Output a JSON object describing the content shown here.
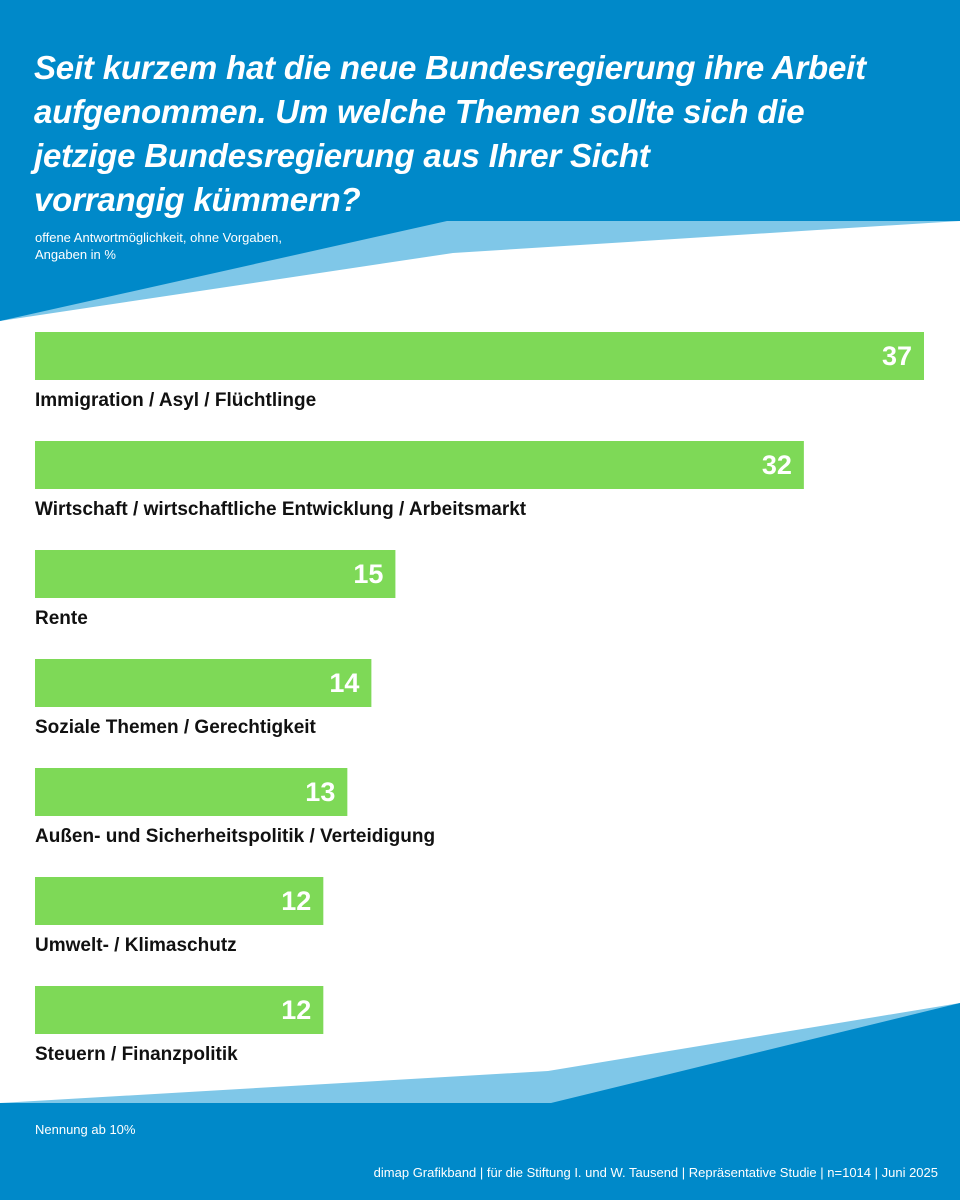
{
  "header": {
    "title_lines": [
      "Seit kurzem hat die neue Bundesregierung ihre Arbeit",
      "aufgenommen. Um welche Themen sollte sich die",
      "jetzige Bundesregierung aus Ihrer Sicht",
      "vorrangig kümmern?"
    ],
    "subtitle_lines": [
      "offene Antwortmöglichkeit, ohne Vorgaben,",
      "Angaben in %"
    ]
  },
  "footer": {
    "note": "Nennung ab 10%",
    "source": "dimap Grafikband | für die Stiftung I. und W. Tausend | Repräsentative Studie | n=1014 | Juni 2025"
  },
  "colors": {
    "dark_blue": "#0089c9",
    "light_blue": "#7fc7e8",
    "bar_green": "#7ed957",
    "label_text": "#111111",
    "value_text": "#ffffff"
  },
  "chart_data": {
    "type": "bar",
    "orientation": "horizontal",
    "title": "Seit kurzem hat die neue Bundesregierung ihre Arbeit aufgenommen. Um welche Themen sollte sich die jetzige Bundesregierung aus Ihrer Sicht vorrangig kümmern?",
    "subtitle": "offene Antwortmöglichkeit, ohne Vorgaben, Angaben in %",
    "categories": [
      "Immigration / Asyl / Flüchtlinge",
      "Wirtschaft / wirtschaftliche Entwicklung / Arbeitsmarkt",
      "Rente",
      "Soziale Themen / Gerechtigkeit",
      "Außen- und Sicherheitspolitik / Verteidigung",
      "Umwelt- / Klimaschutz",
      "Steuern / Finanzpolitik"
    ],
    "values": [
      37,
      32,
      15,
      14,
      13,
      12,
      12
    ],
    "unit": "%",
    "xlabel": "",
    "ylabel": "",
    "xlim": [
      0,
      37
    ],
    "grid": false,
    "data_labels": true,
    "note": "Nennung ab 10%"
  }
}
